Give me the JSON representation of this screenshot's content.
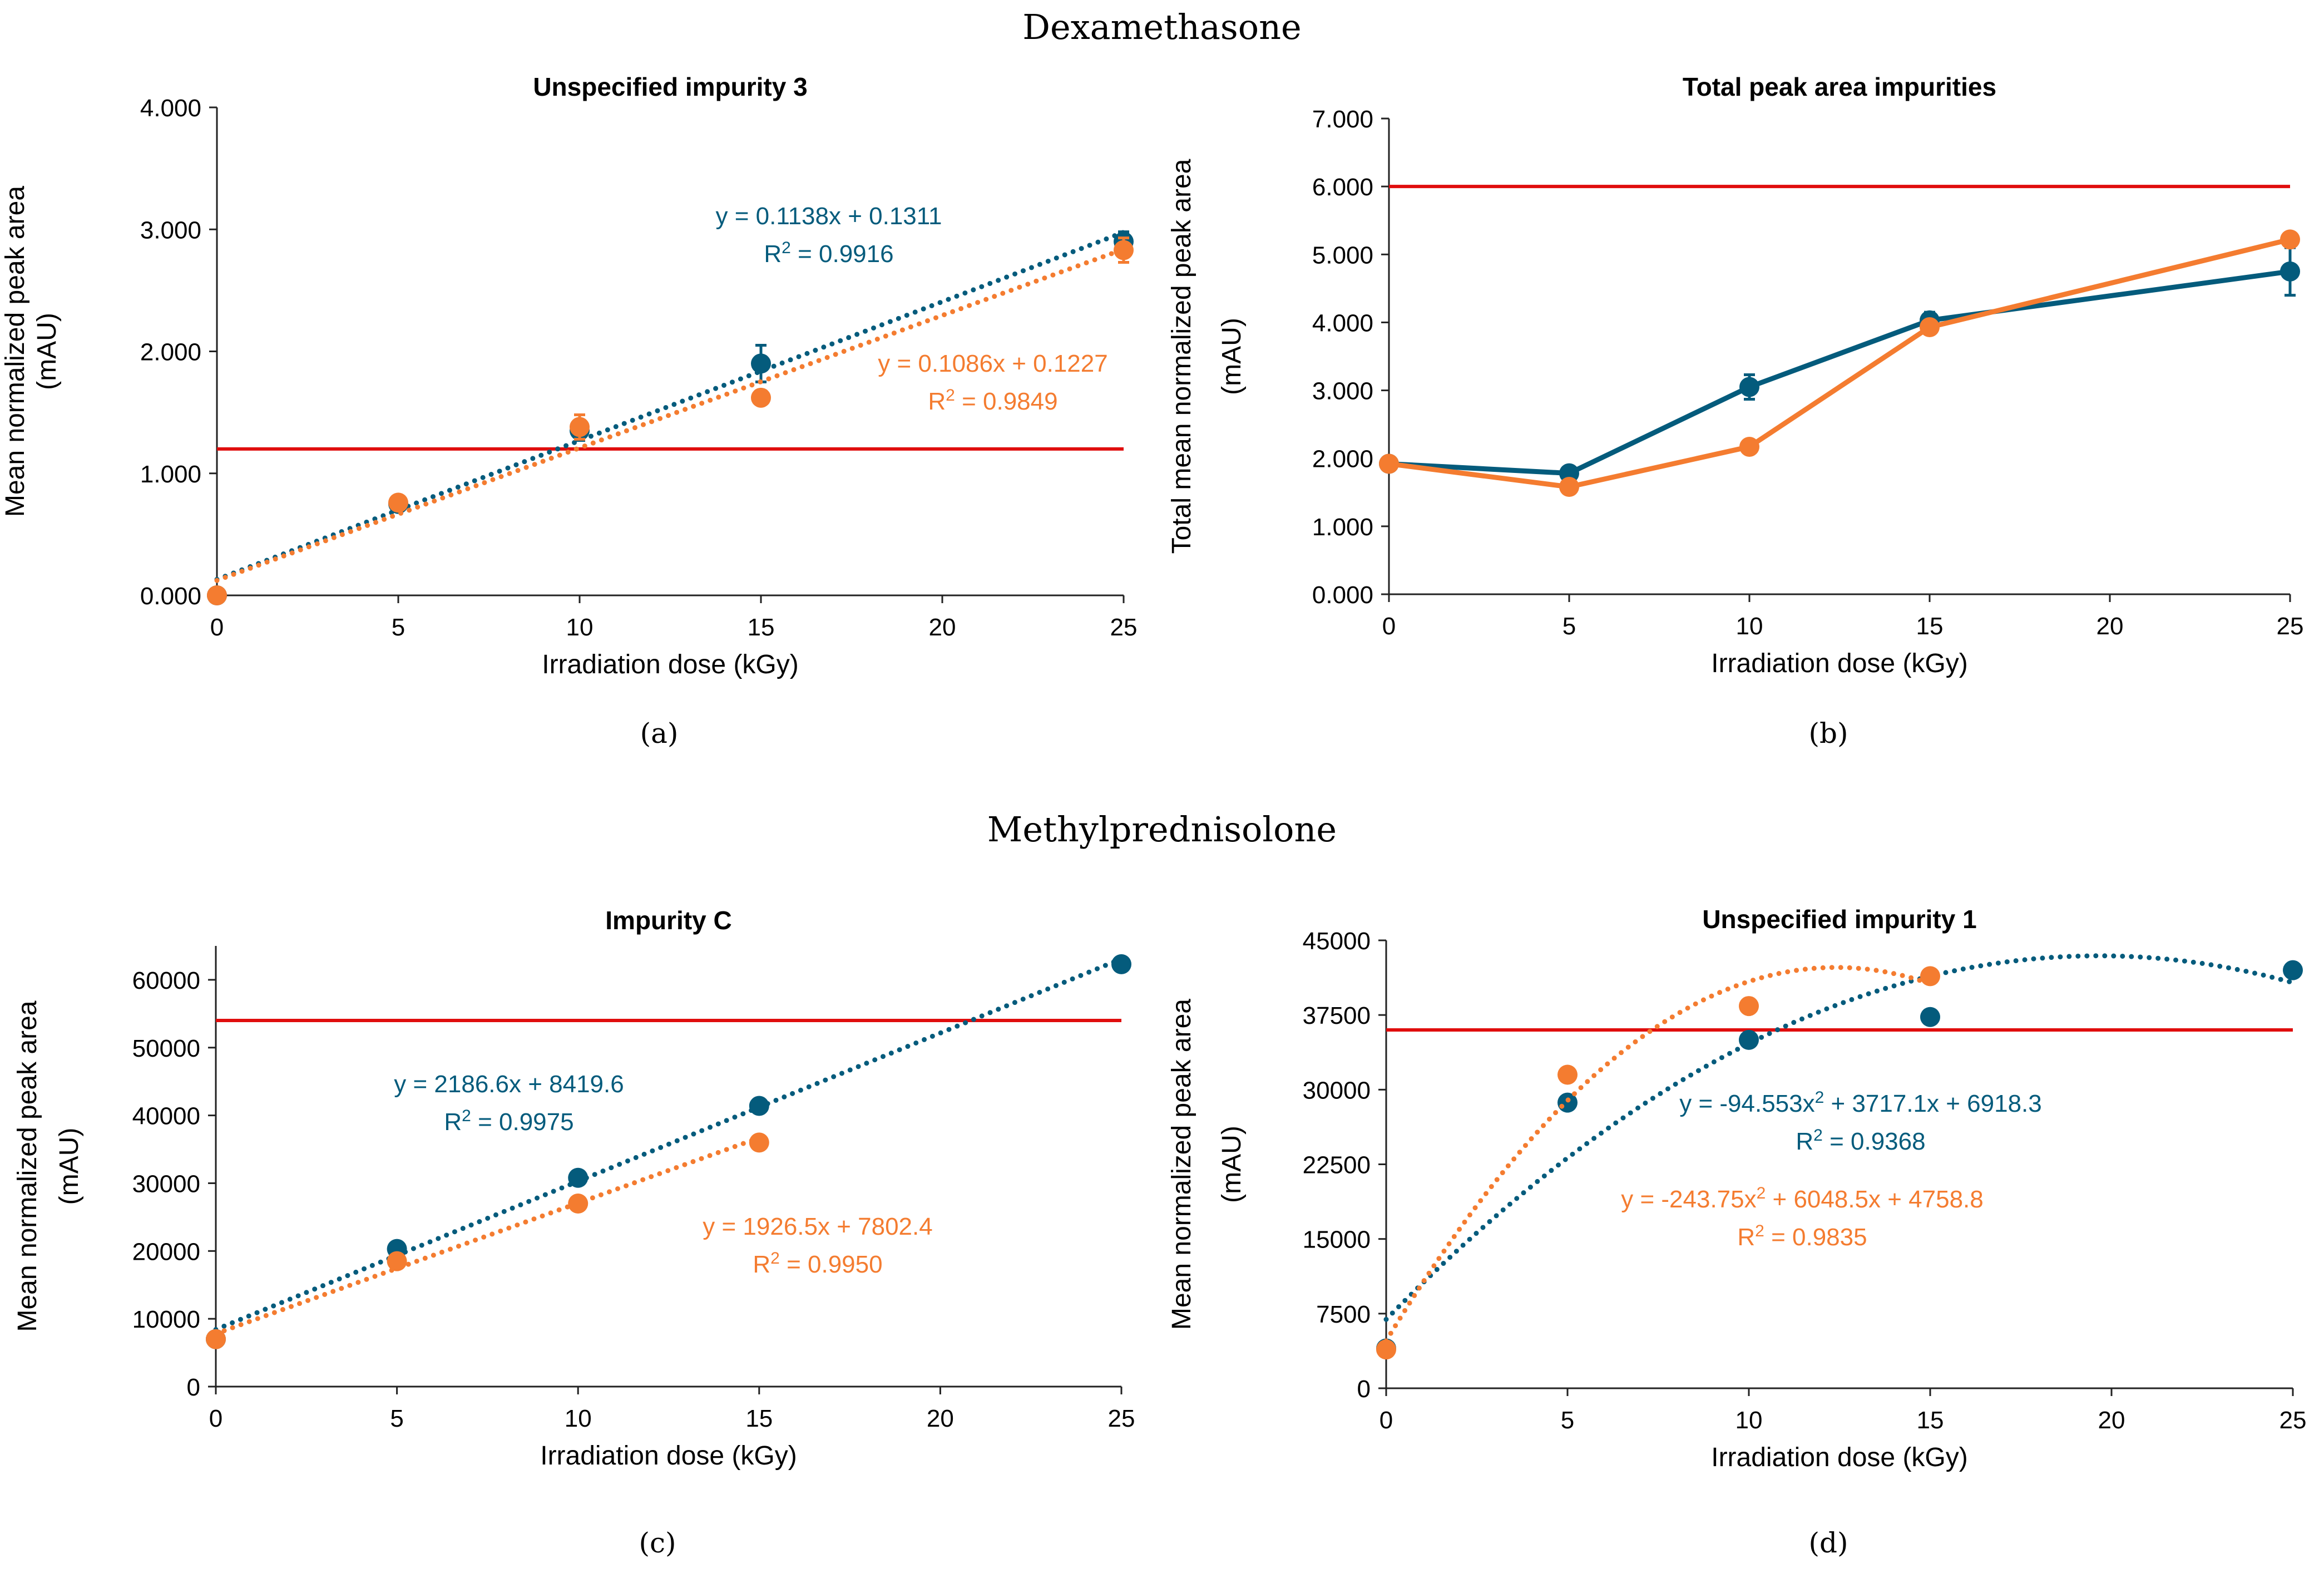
{
  "colors": {
    "blue": "#045b7c",
    "orange": "#f47c30",
    "red": "#e00d0d",
    "axis": "#222222",
    "text": "#000000"
  },
  "sections": {
    "top_title": "Dexamethasone",
    "bottom_title": "Methylprednisolone"
  },
  "chart_data": [
    {
      "type": "scatter",
      "panel_label": "(a)",
      "title": "Unspecified impurity 3",
      "xlabel": "Irradiation dose (kGy)",
      "ylabel": [
        "Mean normalized peak area",
        "(mAU)"
      ],
      "xlim": [
        0,
        25
      ],
      "ylim": [
        0,
        4
      ],
      "xticks": [
        0,
        5,
        10,
        15,
        20,
        25
      ],
      "xtick_labels": [
        "0",
        "5",
        "10",
        "15",
        "20",
        "25"
      ],
      "yticks": [
        0,
        1,
        2,
        3,
        4
      ],
      "ytick_labels": [
        "0.000",
        "1.000",
        "2.000",
        "3.000",
        "4.000"
      ],
      "reference_line": 1.2,
      "series": [
        {
          "name": "blue",
          "color": "blue",
          "style": "markers-trend",
          "x": [
            0,
            5,
            10,
            15,
            25
          ],
          "y": [
            0.0,
            0.75,
            1.35,
            1.9,
            2.9
          ],
          "err": [
            0,
            0.03,
            0.08,
            0.15,
            0.08
          ],
          "trend": {
            "kind": "linear",
            "coef": [
              0.1311,
              0.1138
            ],
            "range": [
              0,
              25
            ]
          },
          "equation": "y = 0.1138x + 0.1311",
          "r2_label": "R",
          "r2_value": " = 0.9916"
        },
        {
          "name": "orange",
          "color": "orange",
          "style": "markers-trend",
          "x": [
            0,
            5,
            10,
            15,
            25
          ],
          "y": [
            0.0,
            0.76,
            1.38,
            1.62,
            2.83
          ],
          "err": [
            0,
            0.03,
            0.1,
            0.04,
            0.1
          ],
          "trend": {
            "kind": "linear",
            "coef": [
              0.1227,
              0.1086
            ],
            "range": [
              0,
              25
            ]
          },
          "equation": "y = 0.1086x + 0.1227",
          "r2_label": "R",
          "r2_value": " = 0.9849"
        }
      ]
    },
    {
      "type": "line",
      "panel_label": "(b)",
      "title": "Total peak area impurities",
      "xlabel": "Irradiation dose (kGy)",
      "ylabel": [
        "Total mean normalized peak area",
        "(mAU)"
      ],
      "xlim": [
        0,
        25
      ],
      "ylim": [
        0,
        7
      ],
      "xticks": [
        0,
        5,
        10,
        15,
        20,
        25
      ],
      "xtick_labels": [
        "0",
        "5",
        "10",
        "15",
        "20",
        "25"
      ],
      "yticks": [
        0,
        1,
        2,
        3,
        4,
        5,
        6,
        7
      ],
      "ytick_labels": [
        "0.000",
        "1.000",
        "2.000",
        "3.000",
        "4.000",
        "5.000",
        "6.000",
        "7.000"
      ],
      "reference_line": 6.0,
      "series": [
        {
          "name": "blue",
          "color": "blue",
          "style": "line-markers",
          "x": [
            0,
            5,
            10,
            15,
            25
          ],
          "y": [
            1.92,
            1.78,
            3.05,
            4.03,
            4.75
          ],
          "err": [
            0.04,
            0.06,
            0.18,
            0.12,
            0.35
          ]
        },
        {
          "name": "orange",
          "color": "orange",
          "style": "line-markers",
          "x": [
            0,
            5,
            10,
            15,
            25
          ],
          "y": [
            1.92,
            1.58,
            2.17,
            3.93,
            5.22
          ],
          "err": [
            0.04,
            0.04,
            0.08,
            0.07,
            0.1
          ]
        }
      ]
    },
    {
      "type": "scatter",
      "panel_label": "(c)",
      "title": "Impurity C",
      "xlabel": "Irradiation dose (kGy)",
      "ylabel": [
        "Mean normalized peak area",
        "(mAU)"
      ],
      "xlim": [
        0,
        25
      ],
      "ylim": [
        0,
        65000
      ],
      "xticks": [
        0,
        5,
        10,
        15,
        20,
        25
      ],
      "xtick_labels": [
        "0",
        "5",
        "10",
        "15",
        "20",
        "25"
      ],
      "yticks": [
        0,
        10000,
        20000,
        30000,
        40000,
        50000,
        60000
      ],
      "ytick_labels": [
        "0",
        "10000",
        "20000",
        "30000",
        "40000",
        "50000",
        "60000"
      ],
      "reference_line": 54000,
      "series": [
        {
          "name": "blue",
          "color": "blue",
          "style": "markers-trend",
          "x": [
            0,
            5,
            10,
            15,
            25
          ],
          "y": [
            7000,
            20300,
            30800,
            41400,
            62300
          ],
          "err": [
            0,
            0,
            0,
            0,
            0
          ],
          "trend": {
            "kind": "linear",
            "coef": [
              8419.6,
              2186.6
            ],
            "range": [
              0,
              25
            ]
          },
          "equation": "y = 2186.6x + 8419.6",
          "r2_label": "R",
          "r2_value": " = 0.9975"
        },
        {
          "name": "orange",
          "color": "orange",
          "style": "markers-trend",
          "x": [
            0,
            5,
            10,
            15
          ],
          "y": [
            7000,
            18500,
            27000,
            36000
          ],
          "err": [
            0,
            0,
            0,
            0
          ],
          "trend": {
            "kind": "linear",
            "coef": [
              7802.4,
              1926.5
            ],
            "range": [
              0,
              15
            ]
          },
          "equation": "y = 1926.5x + 7802.4",
          "r2_label": "R",
          "r2_value": " = 0.9950"
        }
      ]
    },
    {
      "type": "scatter",
      "panel_label": "(d)",
      "title": "Unspecified impurity 1",
      "xlabel": "Irradiation dose (kGy)",
      "ylabel": [
        "Mean normalized peak area",
        "(mAU)"
      ],
      "xlim": [
        0,
        25
      ],
      "ylim": [
        0,
        45000
      ],
      "xticks": [
        0,
        5,
        10,
        15,
        20,
        25
      ],
      "xtick_labels": [
        "0",
        "5",
        "10",
        "15",
        "20",
        "25"
      ],
      "yticks": [
        0,
        7500,
        15000,
        22500,
        30000,
        37500,
        45000
      ],
      "ytick_labels": [
        "0",
        "7500",
        "15000",
        "22500",
        "30000",
        "37500",
        "45000"
      ],
      "reference_line": 36000,
      "series": [
        {
          "name": "blue",
          "color": "blue",
          "style": "markers-trend",
          "x": [
            0,
            5,
            10,
            15,
            25
          ],
          "y": [
            4000,
            28700,
            35000,
            37300,
            42000
          ],
          "err": [
            0,
            0,
            0,
            0,
            0
          ],
          "trend": {
            "kind": "quadratic",
            "coef": [
              6918.3,
              3717.1,
              -94.553
            ],
            "range": [
              0,
              25
            ]
          },
          "equation": "y = -94.553x",
          "eq_sup": "2",
          "eq_rest": " + 3717.1x + 6918.3",
          "r2_label": "R",
          "r2_value": " = 0.9368"
        },
        {
          "name": "orange",
          "color": "orange",
          "style": "markers-trend",
          "x": [
            0,
            5,
            10,
            15
          ],
          "y": [
            3900,
            31500,
            38400,
            41400
          ],
          "err": [
            0,
            0,
            0,
            0
          ],
          "trend": {
            "kind": "quadratic",
            "coef": [
              4758.8,
              6048.5,
              -243.75
            ],
            "range": [
              0,
              15
            ]
          },
          "equation": "y = -243.75x",
          "eq_sup": "2",
          "eq_rest": " + 6048.5x + 4758.8",
          "r2_label": "R",
          "r2_value": " = 0.9835"
        }
      ]
    }
  ]
}
